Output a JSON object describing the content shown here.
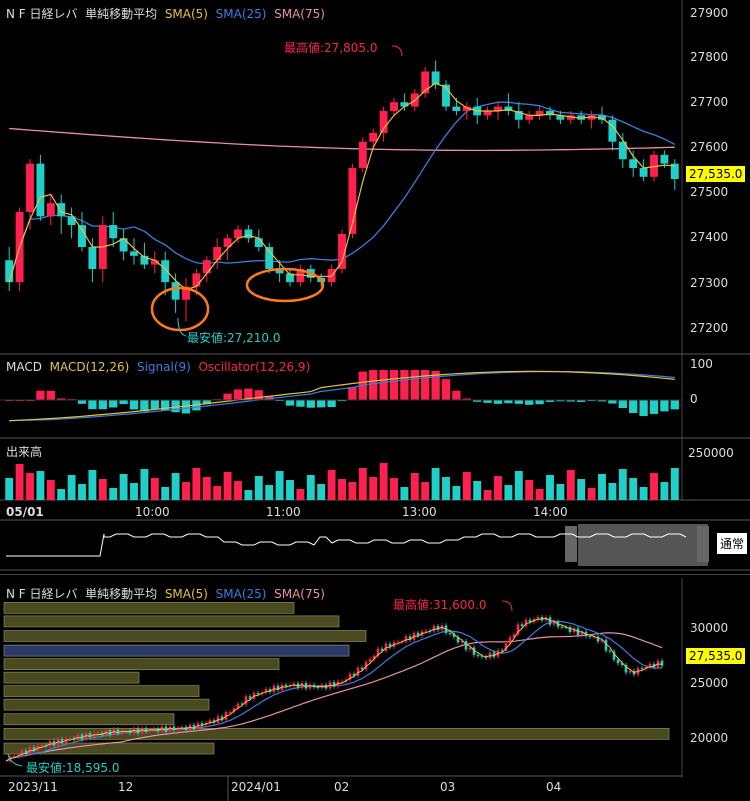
{
  "colors": {
    "up": "#ff2050",
    "down": "#20d0c8",
    "sma5": "#e6c23c",
    "sma25": "#3c7de0",
    "sma75": "#e890a8",
    "macd": "#e6c23c",
    "signal": "#3c7de0",
    "osc_up": "#ff2050",
    "osc_down": "#20d0c8",
    "orange": "#ff7a1a"
  },
  "intraday": {
    "header": {
      "name": "N F 日経レバ",
      "indicator": "単純移動平均",
      "sma5": "SMA(5)",
      "sma25": "SMA(25)",
      "sma75": "SMA(75)"
    },
    "high_label": "最高値:27,805.0",
    "low_label": "最安値:27,210.0",
    "price_label": "27,535.0",
    "yticks": [
      "27900",
      "27800",
      "27700",
      "27600",
      "27500",
      "27400",
      "27300",
      "27200"
    ],
    "macd_header": {
      "name": "MACD",
      "macd": "MACD(12,26)",
      "signal": "Signal(9)",
      "osc": "Oscillator(12,26,9)"
    },
    "macd_yticks": [
      "100",
      "0"
    ],
    "volume_header": "出来高",
    "volume_ytick": "250000",
    "xticks": [
      "05/01",
      "10:00",
      "11:00",
      "13:00",
      "14:00"
    ],
    "button": "通常"
  },
  "daily": {
    "header": {
      "name": "N F 日経レバ",
      "indicator": "単純移動平均",
      "sma5": "SMA(5)",
      "sma25": "SMA(25)",
      "sma75": "SMA(75)"
    },
    "high_label": "最高値:31,600.0",
    "low_label": "最安値:18,595.0",
    "price_label": "27,535.0",
    "yticks": [
      "30000",
      "25000",
      "20000"
    ],
    "xticks": [
      "2023/11",
      "12",
      "2024/01",
      "02",
      "03",
      "04"
    ]
  },
  "chart_data": [
    {
      "type": "candlestick",
      "title": "N F 日経レバ 単純移動平均 (intraday)",
      "ylim": [
        27150,
        27920
      ],
      "series": [
        {
          "name": "SMA(5)"
        },
        {
          "name": "SMA(25)"
        },
        {
          "name": "SMA(75)"
        }
      ],
      "candles": [
        [
          27350,
          27380,
          27280,
          27300
        ],
        [
          27300,
          27470,
          27280,
          27460
        ],
        [
          27460,
          27580,
          27420,
          27570
        ],
        [
          27570,
          27590,
          27440,
          27450
        ],
        [
          27450,
          27500,
          27430,
          27480
        ],
        [
          27480,
          27500,
          27410,
          27450
        ],
        [
          27450,
          27470,
          27400,
          27430
        ],
        [
          27430,
          27460,
          27370,
          27380
        ],
        [
          27380,
          27400,
          27300,
          27330
        ],
        [
          27330,
          27450,
          27300,
          27430
        ],
        [
          27430,
          27460,
          27380,
          27400
        ],
        [
          27400,
          27420,
          27350,
          27370
        ],
        [
          27370,
          27400,
          27340,
          27360
        ],
        [
          27360,
          27390,
          27330,
          27340
        ],
        [
          27340,
          27370,
          27320,
          27350
        ],
        [
          27350,
          27370,
          27270,
          27300
        ],
        [
          27300,
          27320,
          27230,
          27260
        ],
        [
          27260,
          27310,
          27210,
          27290
        ],
        [
          27290,
          27330,
          27270,
          27320
        ],
        [
          27320,
          27360,
          27300,
          27350
        ],
        [
          27350,
          27400,
          27330,
          27380
        ],
        [
          27380,
          27410,
          27350,
          27400
        ],
        [
          27400,
          27430,
          27390,
          27420
        ],
        [
          27420,
          27430,
          27390,
          27400
        ],
        [
          27400,
          27420,
          27370,
          27380
        ],
        [
          27380,
          27390,
          27320,
          27330
        ],
        [
          27330,
          27350,
          27300,
          27320
        ],
        [
          27320,
          27330,
          27290,
          27300
        ],
        [
          27300,
          27340,
          27290,
          27330
        ],
        [
          27330,
          27340,
          27300,
          27310
        ],
        [
          27310,
          27320,
          27290,
          27300
        ],
        [
          27300,
          27340,
          27290,
          27330
        ],
        [
          27330,
          27420,
          27320,
          27410
        ],
        [
          27410,
          27570,
          27400,
          27560
        ],
        [
          27560,
          27630,
          27550,
          27620
        ],
        [
          27620,
          27650,
          27600,
          27640
        ],
        [
          27640,
          27700,
          27620,
          27690
        ],
        [
          27690,
          27720,
          27680,
          27710
        ],
        [
          27710,
          27730,
          27690,
          27700
        ],
        [
          27700,
          27740,
          27690,
          27730
        ],
        [
          27730,
          27790,
          27720,
          27780
        ],
        [
          27780,
          27805,
          27740,
          27750
        ],
        [
          27750,
          27760,
          27690,
          27700
        ],
        [
          27700,
          27720,
          27680,
          27690
        ],
        [
          27690,
          27710,
          27670,
          27700
        ],
        [
          27700,
          27720,
          27660,
          27680
        ],
        [
          27680,
          27700,
          27670,
          27690
        ],
        [
          27690,
          27710,
          27670,
          27700
        ],
        [
          27700,
          27730,
          27680,
          27690
        ],
        [
          27690,
          27710,
          27650,
          27670
        ],
        [
          27670,
          27690,
          27660,
          27680
        ],
        [
          27680,
          27700,
          27670,
          27690
        ],
        [
          27690,
          27700,
          27670,
          27680
        ],
        [
          27680,
          27690,
          27660,
          27670
        ],
        [
          27670,
          27690,
          27660,
          27680
        ],
        [
          27680,
          27690,
          27660,
          27670
        ],
        [
          27670,
          27690,
          27650,
          27680
        ],
        [
          27680,
          27700,
          27660,
          27670
        ],
        [
          27670,
          27680,
          27600,
          27620
        ],
        [
          27620,
          27640,
          27560,
          27580
        ],
        [
          27580,
          27600,
          27540,
          27560
        ],
        [
          27560,
          27580,
          27530,
          27540
        ],
        [
          27540,
          27600,
          27530,
          27590
        ],
        [
          27590,
          27600,
          27560,
          27570
        ],
        [
          27570,
          27580,
          27510,
          27535
        ]
      ],
      "macd_yticks": [
        100,
        0
      ],
      "volume_ytick": 250000
    },
    {
      "type": "candlestick",
      "title": "N F 日経レバ 単純移動平均 (daily)",
      "ylim": [
        17500,
        33500
      ],
      "x": [
        "2023/11",
        "12",
        "2024/01",
        "02",
        "03",
        "04"
      ],
      "series": [
        {
          "name": "SMA(5)"
        },
        {
          "name": "SMA(25)"
        },
        {
          "name": "SMA(75)"
        }
      ],
      "high": 31600,
      "low": 18595,
      "last": 27535
    }
  ]
}
